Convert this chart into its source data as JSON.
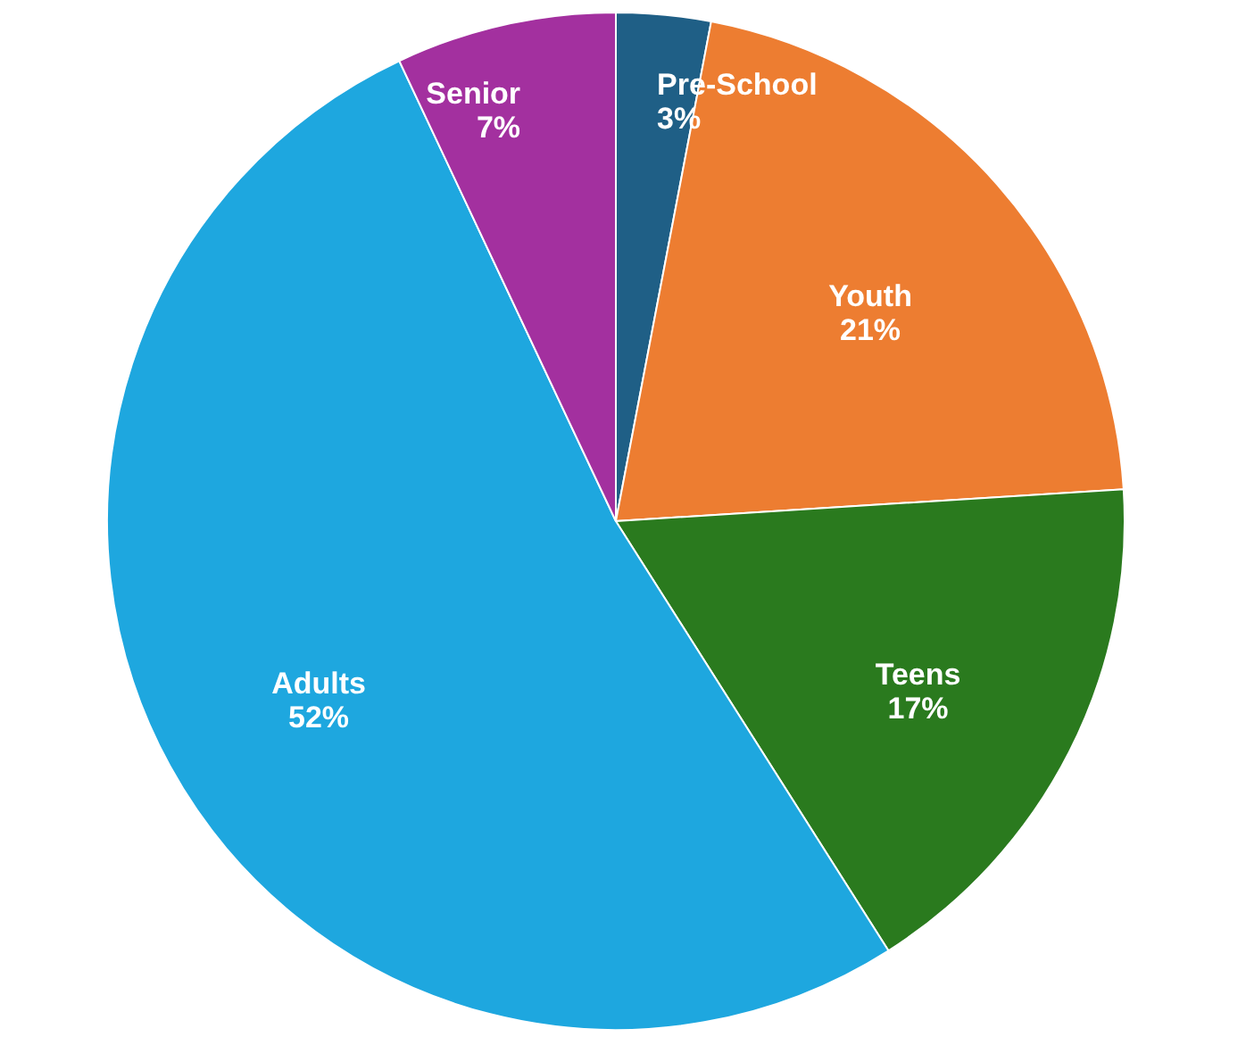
{
  "chart_data": {
    "type": "pie",
    "categories": [
      "Pre-School",
      "Youth",
      "Teens",
      "Adults",
      "Senior"
    ],
    "values": [
      3,
      21,
      17,
      52,
      7
    ],
    "colors": [
      "#1f5f86",
      "#ed7d31",
      "#2a7a1e",
      "#1ea7df",
      "#a3309f"
    ],
    "value_labels": [
      "3%",
      "21%",
      "17%",
      "52%",
      "7%"
    ],
    "legend": false
  }
}
